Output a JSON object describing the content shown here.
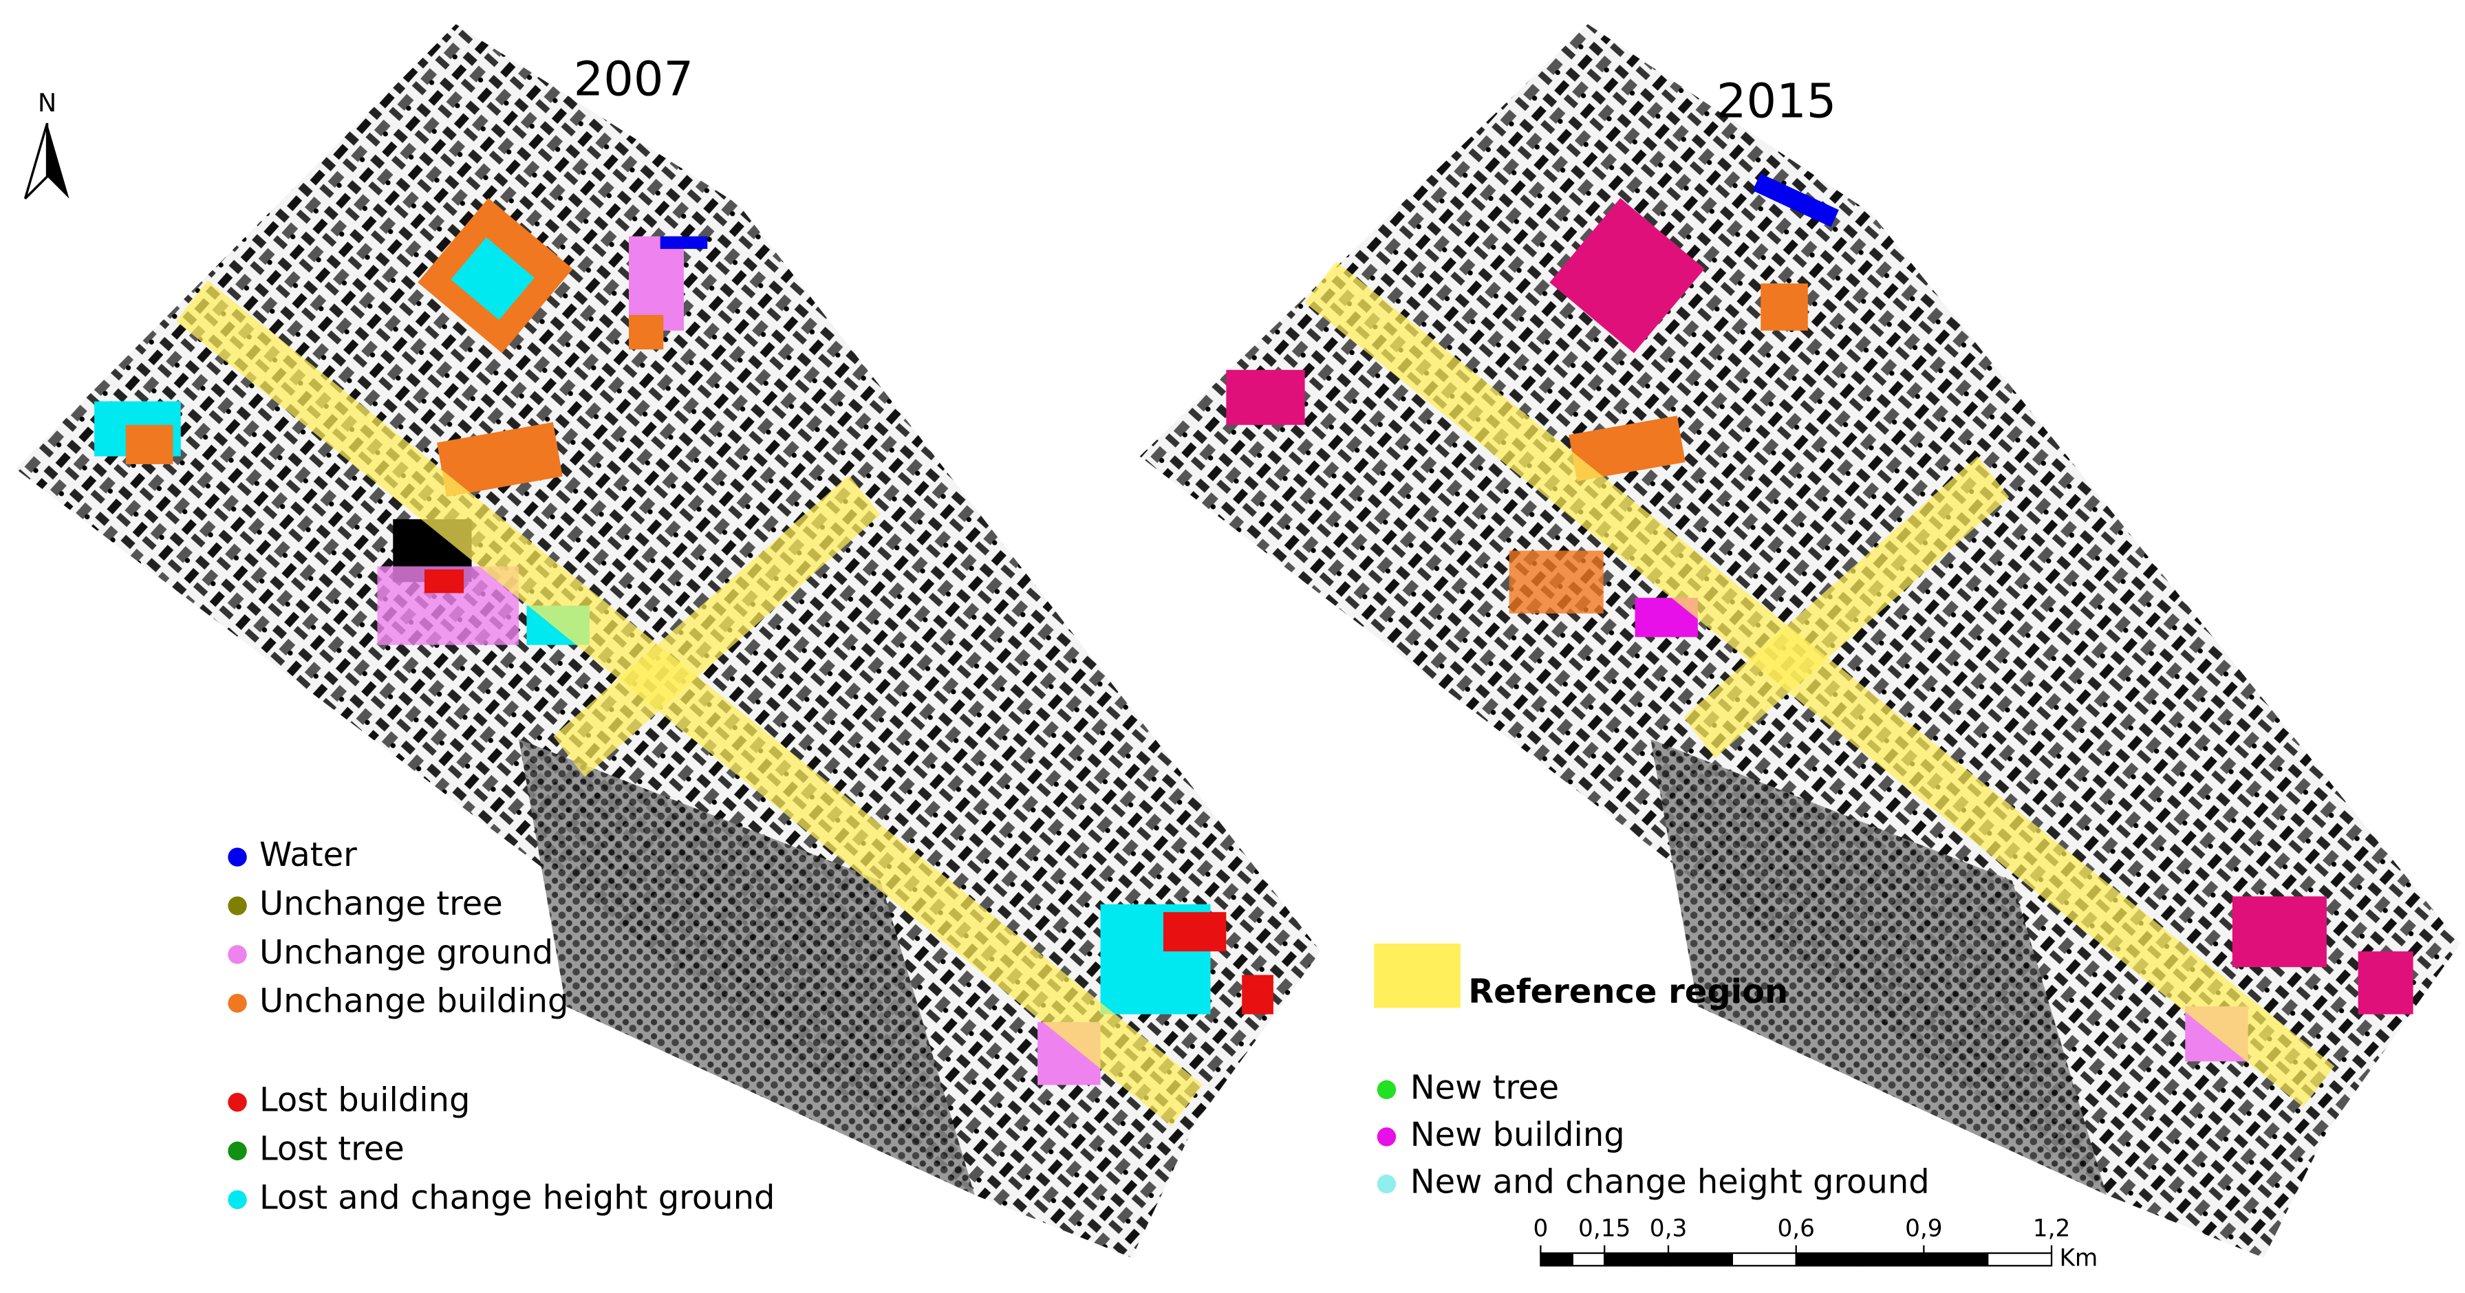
{
  "north_arrow": {
    "label": "N"
  },
  "panels": [
    {
      "title": "2007"
    },
    {
      "title": "2015"
    }
  ],
  "legend_left": {
    "groups": [
      [
        {
          "label": "Water",
          "color": "#0000ee"
        },
        {
          "label": "Unchange tree",
          "color": "#808000"
        },
        {
          "label": "Unchange ground",
          "color": "#ee82ee"
        },
        {
          "label": "Unchange building",
          "color": "#f07820"
        }
      ],
      [
        {
          "label": "Lost building",
          "color": "#e81010"
        },
        {
          "label": "Lost tree",
          "color": "#129012"
        },
        {
          "label": "Lost and change height ground",
          "color": "#00e8f0"
        }
      ]
    ]
  },
  "reference": {
    "label": "Reference region",
    "color": "#ffef5a"
  },
  "legend_right": {
    "items": [
      {
        "label": "New tree",
        "color": "#22e022"
      },
      {
        "label": "New building",
        "color": "#e810e8"
      },
      {
        "label": "New and change height ground",
        "color": "#90eeee"
      }
    ]
  },
  "scale_bar": {
    "unit": "Km",
    "ticks": [
      {
        "value": 0,
        "label": "0"
      },
      {
        "value": 0.15,
        "label": "0,15"
      },
      {
        "value": 0.3,
        "label": "0,3"
      },
      {
        "value": 0.6,
        "label": "0,6"
      },
      {
        "value": 0.9,
        "label": "0,9"
      },
      {
        "value": 1.2,
        "label": "1,2"
      }
    ]
  }
}
